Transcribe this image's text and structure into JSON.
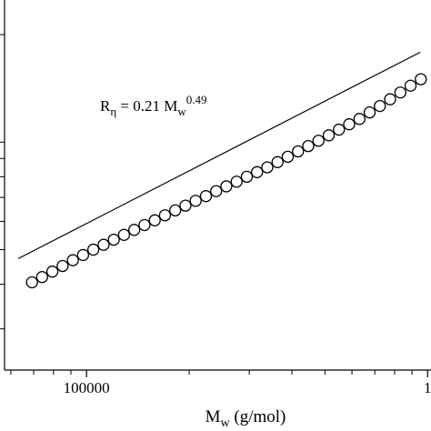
{
  "chart_data": {
    "type": "scatter",
    "x_scale": "log",
    "y_scale": "log",
    "xlabel": {
      "main": "M",
      "sub": "w",
      "rest": " (g/mol)"
    },
    "annotation": {
      "r": "R",
      "r_sub": "η",
      "mid": " = 0.21 M",
      "m_sub": "w",
      "sup": "0.49"
    },
    "xlim": [
      57500,
      1023000
    ],
    "ylim": [
      23,
      250
    ],
    "xticks": [
      100000,
      {
        "value": 1000000,
        "label": "1"
      }
    ],
    "x_minor_ticks": [
      60000,
      70000,
      80000,
      90000,
      200000,
      300000,
      400000,
      500000,
      600000,
      700000,
      800000,
      900000
    ],
    "y_minor_ticks": [
      30,
      40,
      50,
      60,
      70,
      80,
      90,
      100,
      200
    ],
    "series": [
      {
        "kind": "points",
        "color": "#000000",
        "x": [
          69200,
          74100,
          79400,
          85100,
          91200,
          97700,
          104700,
          112200,
          120200,
          128800,
          138000,
          147900,
          158500,
          169800,
          182000,
          195000,
          208900,
          223900,
          239900,
          257000,
          275400,
          295100,
          316200,
          338800,
          363100,
          389000,
          416900,
          446700,
          478600,
          512900,
          549500,
          588800,
          631000,
          676100,
          724400,
          776200,
          831800,
          891300,
          955000
        ],
        "values": [
          40.5,
          41.9,
          43.4,
          45.0,
          46.7,
          48.3,
          50.0,
          51.6,
          53.3,
          55.0,
          56.8,
          58.6,
          60.4,
          62.4,
          64.4,
          66.4,
          68.5,
          70.6,
          72.9,
          75.2,
          77.5,
          80.0,
          82.4,
          85.0,
          87.9,
          91.0,
          94.2,
          97.5,
          100.9,
          104.5,
          108.4,
          112.2,
          116.1,
          121.1,
          126.2,
          131.8,
          137.7,
          143.9,
          150.0
        ]
      },
      {
        "kind": "line",
        "color": "#000000",
        "x": [
          63100,
          952000
        ],
        "values": [
          47.2,
          178.6
        ]
      }
    ]
  }
}
